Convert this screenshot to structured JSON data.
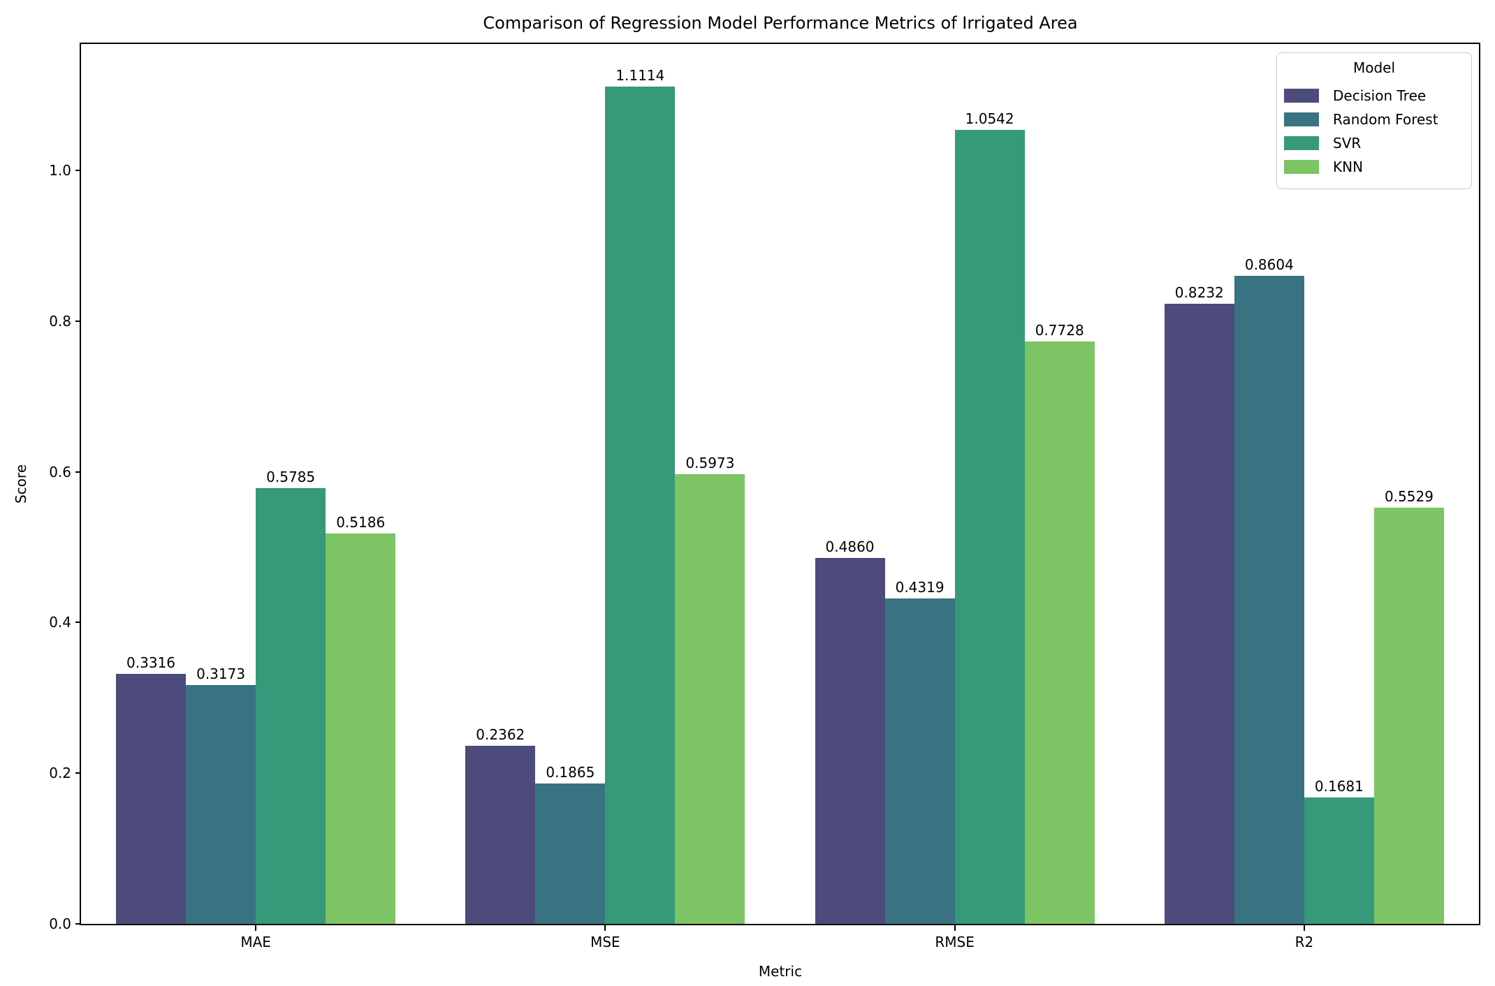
{
  "chart_data": {
    "type": "bar",
    "title": "Comparison of Regression Model Performance Metrics of Irrigated Area",
    "xlabel": "Metric",
    "ylabel": "Score",
    "categories": [
      "MAE",
      "MSE",
      "RMSE",
      "R2"
    ],
    "series": [
      {
        "name": "Decision Tree",
        "color": "#4c4b7c",
        "values": [
          0.3316,
          0.2362,
          0.486,
          0.8232
        ]
      },
      {
        "name": "Random Forest",
        "color": "#397381",
        "values": [
          0.3173,
          0.1865,
          0.4319,
          0.8604
        ]
      },
      {
        "name": "SVR",
        "color": "#36997a",
        "values": [
          0.5785,
          1.1114,
          1.0542,
          0.1681
        ]
      },
      {
        "name": "KNN",
        "color": "#7dc464",
        "values": [
          0.5186,
          0.5973,
          0.7728,
          0.5529
        ]
      }
    ],
    "bar_value_label_decimals": 4,
    "yticks": [
      0.0,
      0.2,
      0.4,
      0.6,
      0.8,
      1.0
    ],
    "ylim": [
      0,
      1.168
    ],
    "grid": false,
    "legend": {
      "title": "Model",
      "position": "upper right"
    }
  }
}
